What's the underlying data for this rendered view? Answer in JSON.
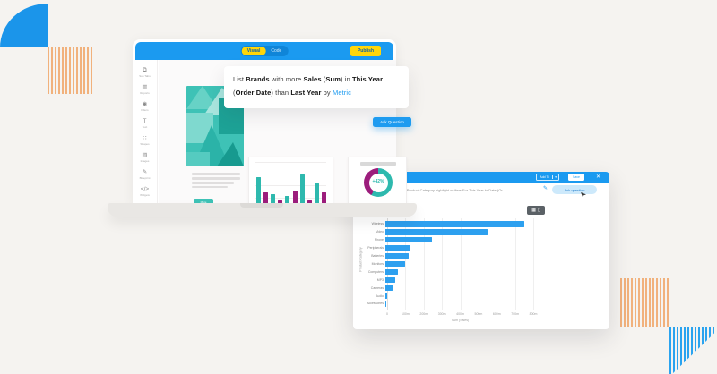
{
  "colors": {
    "accent_blue": "#1b9af0",
    "link_blue": "#1e9bf0",
    "yellow": "#ffd60a",
    "teal": "#2eb9ae",
    "magenta": "#9c1d7c",
    "bar_blue": "#2da0ef"
  },
  "laptop": {
    "header": {
      "toggle": [
        {
          "label": "Visual",
          "active": true
        },
        {
          "label": "Code",
          "active": false
        }
      ],
      "publish": "Publish"
    },
    "sidebar": [
      {
        "icon": "subtabs-icon",
        "glyph": "⧉",
        "label": "Sub Tabs"
      },
      {
        "icon": "reports-icon",
        "glyph": "▥",
        "label": "Reports"
      },
      {
        "icon": "filters-icon",
        "glyph": "◉",
        "label": "Filters"
      },
      {
        "icon": "text-icon",
        "glyph": "T",
        "label": "Text"
      },
      {
        "icon": "shapes-icon",
        "glyph": "∷",
        "label": "Shapes"
      },
      {
        "icon": "images-icon",
        "glyph": "▨",
        "label": "Images"
      },
      {
        "icon": "blueprint-icon",
        "glyph": "✎",
        "label": "Blueprint"
      },
      {
        "icon": "widgets-icon",
        "glyph": "</>",
        "label": "Widgets"
      }
    ],
    "question": {
      "parts": [
        {
          "t": "List "
        },
        {
          "t": "Brands",
          "b": true
        },
        {
          "t": " with more "
        },
        {
          "t": "Sales",
          "b": true
        },
        {
          "t": " ("
        },
        {
          "t": "Sum",
          "b": true
        },
        {
          "t": ") in "
        },
        {
          "t": "This Year",
          "b": true
        },
        {
          "br": true
        },
        {
          "t": "("
        },
        {
          "t": "Order Date",
          "b": true
        },
        {
          "t": ") than "
        },
        {
          "t": "Last Year",
          "b": true
        },
        {
          "t": " by "
        },
        {
          "t": "Metric",
          "blue": true
        }
      ]
    },
    "ask_button": "Ask Question",
    "cta_button": "More"
  },
  "dialog": {
    "add_to": "Add To",
    "chevron": "▾",
    "save": "Save",
    "close": "✕",
    "query": ") by Product Category highlight outliers For This Year to Date (Or...",
    "pencil": "✎",
    "ask_pill": "Ask question",
    "view_toggle": [
      {
        "icon": "chart-view-icon",
        "glyph": "▦"
      },
      {
        "icon": "table-view-icon",
        "glyph": "▯"
      }
    ]
  },
  "chart_data": [
    {
      "type": "bar",
      "title": "dashboard mini column chart",
      "values": [
        65,
        33,
        29,
        16,
        25,
        37,
        71,
        15,
        52,
        33
      ],
      "series_colors": [
        "#2eb9ae",
        "#9c1d7c"
      ],
      "grid": true,
      "note": "alternating teal/magenta columns, no axis labels visible"
    },
    {
      "type": "pie",
      "donut": true,
      "center_label": "+42%",
      "slices": [
        {
          "name": "current",
          "value": 58,
          "color": "#2eb9ae"
        },
        {
          "name": "previous",
          "value": 42,
          "color": "#9c1d7c"
        }
      ],
      "legend_position": "bottom"
    },
    {
      "type": "bar",
      "orientation": "horizontal",
      "categories": [
        "Wireless",
        "Video",
        "Phone",
        "Peripherals",
        "Batteries",
        "Monitors",
        "Computers",
        "MP3",
        "Cameras",
        "Audio",
        "Accessories"
      ],
      "values": [
        760,
        560,
        255,
        137,
        130,
        108,
        69,
        54,
        39,
        12,
        2
      ],
      "unit": "m",
      "xlabel": "Sum (Sales)",
      "ylabel": "Product Category",
      "x_ticks": [
        "0",
        "100m",
        "200m",
        "300m",
        "400m",
        "500m",
        "600m",
        "700m",
        "800m"
      ],
      "xlim": [
        0,
        800
      ],
      "bar_color": "#2da0ef",
      "grid": true
    }
  ]
}
